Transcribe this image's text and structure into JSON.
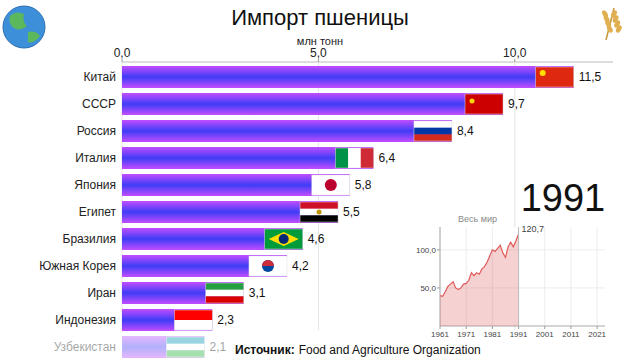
{
  "chart_data": [
    {
      "type": "bar",
      "title": "Импорт пшеницы",
      "xlabel": "млн тонн",
      "orientation": "horizontal",
      "categories": [
        "Китай",
        "СССР",
        "Россия",
        "Италия",
        "Япония",
        "Египет",
        "Бразилия",
        "Южная Корея",
        "Иран",
        "Индонезия",
        "Узбекистан"
      ],
      "values": [
        11.5,
        9.7,
        8.4,
        6.4,
        5.8,
        5.5,
        4.6,
        4.2,
        3.1,
        2.3,
        2.1
      ],
      "value_labels": [
        "11,5",
        "9,7",
        "8,4",
        "6,4",
        "5,8",
        "5,5",
        "4,6",
        "4,2",
        "3,1",
        "2,3",
        "2,1"
      ],
      "data_labels": true,
      "color": "#3f3cf6",
      "xlim": [
        0,
        12.5
      ],
      "xticks": [
        {
          "value": 0,
          "label": "0,0"
        },
        {
          "value": 5,
          "label": "5,0"
        },
        {
          "value": 10,
          "label": "10,0"
        }
      ],
      "grid": true,
      "annotations": [
        "1991"
      ],
      "source": {
        "label": "Источник:",
        "text": "Food and Agriculture Organization"
      }
    },
    {
      "type": "line",
      "title": "Весь мир",
      "x": [
        1961,
        1962,
        1963,
        1964,
        1965,
        1966,
        1967,
        1968,
        1969,
        1970,
        1971,
        1972,
        1973,
        1974,
        1975,
        1976,
        1977,
        1978,
        1979,
        1980,
        1981,
        1982,
        1983,
        1984,
        1985,
        1986,
        1987,
        1988,
        1989,
        1990,
        1991
      ],
      "values": [
        40,
        39,
        45,
        52,
        55,
        58,
        50,
        48,
        50,
        55,
        56,
        60,
        70,
        66,
        70,
        68,
        75,
        78,
        84,
        92,
        100,
        98,
        102,
        106,
        96,
        90,
        104,
        110,
        104,
        112,
        120.7
      ],
      "value_labels": [
        null,
        null,
        null,
        null,
        null,
        null,
        null,
        null,
        null,
        null,
        null,
        null,
        null,
        null,
        null,
        null,
        null,
        null,
        null,
        null,
        null,
        null,
        null,
        null,
        null,
        null,
        null,
        null,
        null,
        null,
        "120,7"
      ],
      "color": "#e05a5a",
      "xlim": [
        1961,
        2024
      ],
      "xticks": [
        1961,
        1971,
        1981,
        1991,
        2001,
        2011,
        2021
      ],
      "ylim": [
        0,
        130
      ],
      "yticks": [
        {
          "value": 50,
          "label": "50,0"
        },
        {
          "value": 100,
          "label": "100,0"
        }
      ],
      "grid": true
    }
  ]
}
